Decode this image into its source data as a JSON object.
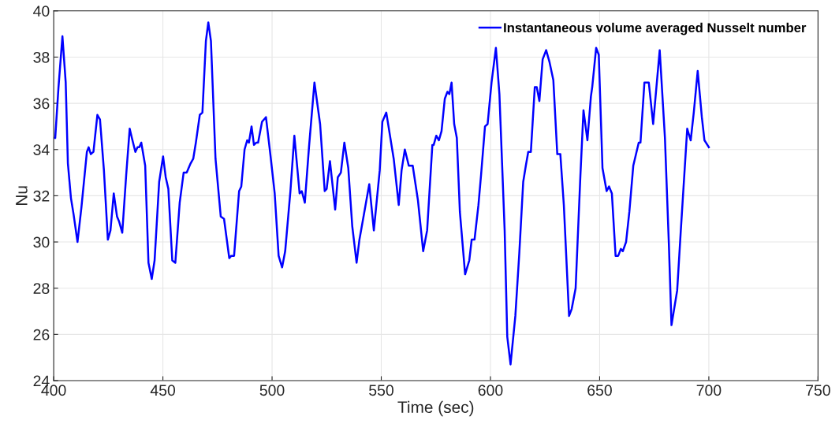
{
  "chart_data": {
    "type": "line",
    "xlabel": "Time (sec)",
    "ylabel": "Nu",
    "xlim": [
      400,
      750
    ],
    "xticks": [
      400,
      450,
      500,
      550,
      600,
      650,
      700,
      750
    ],
    "ylim": [
      24,
      40
    ],
    "yticks": [
      24,
      26,
      28,
      30,
      32,
      34,
      36,
      38,
      40
    ],
    "grid": true,
    "legend": "top right",
    "marker": "none",
    "line_style": "solid",
    "series": [
      {
        "name": "Instantaneous volume averaged Nusselt number",
        "color": "#0000ff",
        "x": [
          400,
          400.7,
          402.2,
          404.0,
          405.5,
          406.5,
          407.9,
          409.1,
          410.9,
          412.7,
          415.2,
          416.0,
          417.0,
          418.2,
          420.0,
          421.2,
          423.0,
          424.8,
          426.0,
          427.5,
          429.0,
          429.9,
          431.4,
          433.2,
          434.8,
          435.8,
          437.4,
          438.4,
          439.2,
          440.1,
          441.9,
          443.4,
          444.9,
          446.2,
          448.3,
          450.1,
          451.3,
          452.5,
          454.3,
          455.7,
          457.7,
          459.5,
          460.9,
          462.7,
          463.9,
          465.1,
          466.9,
          468.1,
          469.7,
          470.8,
          472.0,
          474.1,
          476.5,
          478.0,
          480.4,
          481.3,
          482.6,
          484.9,
          485.9,
          487.4,
          488.6,
          489.4,
          490.6,
          491.7,
          492.8,
          493.6,
          495.4,
          497.2,
          499.2,
          501.2,
          503.0,
          504.6,
          506.0,
          508.4,
          510.2,
          512.6,
          513.6,
          515.0,
          516.9,
          519.4,
          522.0,
          524.1,
          525.0,
          526.5,
          528.9,
          530.1,
          531.5,
          533.1,
          534.9,
          536.7,
          538.7,
          540.0,
          541.5,
          544.5,
          546.6,
          549.3,
          550.5,
          552.3,
          555.7,
          558.0,
          559.3,
          560.8,
          562.6,
          564.4,
          566.8,
          569.2,
          571.0,
          573.4,
          574.0,
          575.2,
          576.4,
          577.6,
          579.1,
          580.3,
          581.2,
          582.2,
          583.4,
          584.6,
          586.0,
          588.4,
          590.3,
          591.4,
          592.7,
          594.5,
          595.7,
          597.5,
          598.7,
          600.5,
          602.5,
          604.1,
          606.5,
          607.7,
          609.2,
          611.4,
          613.2,
          615.0,
          616.2,
          617.3,
          618.5,
          620.3,
          621.2,
          622.4,
          623.9,
          625.5,
          627.0,
          628.8,
          630.6,
          632.0,
          633.6,
          636.0,
          637.2,
          639.0,
          641.2,
          642.6,
          644.4,
          646.0,
          646.6,
          648.4,
          649.6,
          651.3,
          653.2,
          654.3,
          655.6,
          657.3,
          658.5,
          659.7,
          660.6,
          662.1,
          663.6,
          665.4,
          667.9,
          668.7,
          670.5,
          672.5,
          674.5,
          677.5,
          679.9,
          681.7,
          682.9,
          685.5,
          687.1,
          690.1,
          691.7,
          693.1,
          694.9,
          696.8,
          698.0,
          700.0
        ],
        "values": [
          34.5,
          34.5,
          36.7,
          38.9,
          36.9,
          33.4,
          31.9,
          31.2,
          30.0,
          31.5,
          33.9,
          34.1,
          33.8,
          33.9,
          35.5,
          35.3,
          33.1,
          30.1,
          30.5,
          32.1,
          31.1,
          30.9,
          30.4,
          32.9,
          34.9,
          34.5,
          33.9,
          34.1,
          34.1,
          34.3,
          33.3,
          29.1,
          28.4,
          29.2,
          32.6,
          33.7,
          32.8,
          32.3,
          29.2,
          29.1,
          31.7,
          33.0,
          33.0,
          33.4,
          33.6,
          34.3,
          35.5,
          35.6,
          38.7,
          39.5,
          38.7,
          33.6,
          31.1,
          31.0,
          29.3,
          29.4,
          29.4,
          32.2,
          32.4,
          34.0,
          34.4,
          34.3,
          35.0,
          34.2,
          34.3,
          34.3,
          35.2,
          35.4,
          33.8,
          32.1,
          29.4,
          28.9,
          29.6,
          32.2,
          34.6,
          32.1,
          32.2,
          31.7,
          34.1,
          36.9,
          35.1,
          32.2,
          32.3,
          33.5,
          31.4,
          32.8,
          33.0,
          34.3,
          33.2,
          30.7,
          29.1,
          30.1,
          30.9,
          32.5,
          30.5,
          33.1,
          35.2,
          35.6,
          33.6,
          31.6,
          33.1,
          34.0,
          33.3,
          33.3,
          31.8,
          29.6,
          30.5,
          34.2,
          34.2,
          34.6,
          34.4,
          34.8,
          36.2,
          36.5,
          36.4,
          36.9,
          35.1,
          34.5,
          31.3,
          28.6,
          29.2,
          30.1,
          30.1,
          31.6,
          32.9,
          35.0,
          35.1,
          36.9,
          38.4,
          36.4,
          30.5,
          25.9,
          24.7,
          26.8,
          29.5,
          32.6,
          33.3,
          33.9,
          33.9,
          36.7,
          36.7,
          36.1,
          37.9,
          38.3,
          37.8,
          37.0,
          33.8,
          33.8,
          31.6,
          26.8,
          27.1,
          28.0,
          32.9,
          35.7,
          34.4,
          36.3,
          36.7,
          38.4,
          38.1,
          33.2,
          32.2,
          32.4,
          32.1,
          29.4,
          29.4,
          29.7,
          29.6,
          30.0,
          31.3,
          33.3,
          34.3,
          34.3,
          36.9,
          36.9,
          35.1,
          38.3,
          34.5,
          29.9,
          26.4,
          27.9,
          30.4,
          34.9,
          34.4,
          35.6,
          37.4,
          35.4,
          34.4,
          34.1
        ]
      }
    ]
  }
}
